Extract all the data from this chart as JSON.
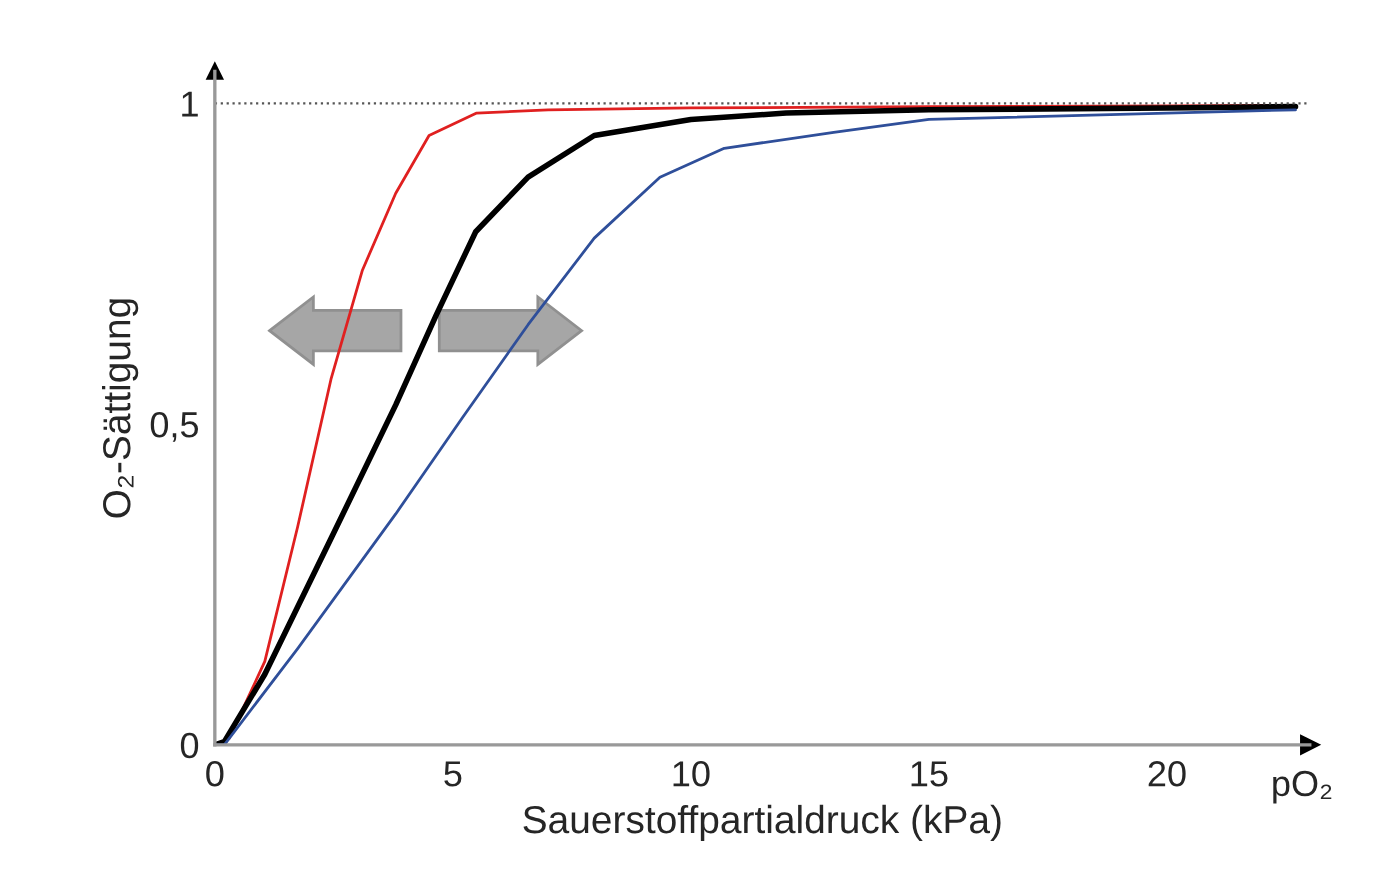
{
  "chart_data": {
    "type": "line",
    "xlabel": "Sauerstoffpartialdruck (kPa)",
    "ylabel": "O₂-Sättigung",
    "annotations": [
      "pO₂"
    ],
    "xlim": [
      0,
      23
    ],
    "ylim": [
      0,
      1.05
    ],
    "xticks": [
      0,
      5,
      10,
      15,
      20
    ],
    "yticks": [
      0,
      {
        "value": 0.5,
        "label": "0,5"
      },
      1
    ],
    "grid": false,
    "legend": false,
    "marker": "none",
    "line_style": "solid",
    "ref_lines": [
      {
        "axis": "y",
        "value": 1,
        "color": "#555555",
        "line_style": "dotted"
      }
    ],
    "series": [
      {
        "color": "#e02020",
        "x": [
          0,
          0.3,
          1.05,
          1.74,
          2.44,
          3.1,
          3.8,
          4.5,
          5.5,
          7,
          10,
          15,
          20,
          22.7
        ],
        "values": [
          0,
          0.01,
          0.13,
          0.34,
          0.57,
          0.74,
          0.86,
          0.95,
          0.985,
          0.99,
          0.993,
          0.995,
          0.996,
          0.997
        ]
      },
      {
        "color": "#000000",
        "x": [
          0,
          0.2,
          1.05,
          2.43,
          3.8,
          4.65,
          5.48,
          6.58,
          7.97,
          10,
          12,
          15,
          20,
          22.7
        ],
        "values": [
          0,
          0.005,
          0.11,
          0.32,
          0.53,
          0.67,
          0.8,
          0.885,
          0.95,
          0.975,
          0.985,
          0.99,
          0.993,
          0.995
        ]
      },
      {
        "color": "#2f4f9a",
        "x": [
          0,
          0.2,
          1.74,
          3.8,
          5.2,
          6.58,
          7.97,
          9.35,
          10.7,
          13,
          15,
          20,
          22.7
        ],
        "values": [
          0,
          0,
          0.15,
          0.36,
          0.51,
          0.655,
          0.79,
          0.885,
          0.93,
          0.955,
          0.975,
          0.985,
          0.99
        ]
      }
    ]
  }
}
